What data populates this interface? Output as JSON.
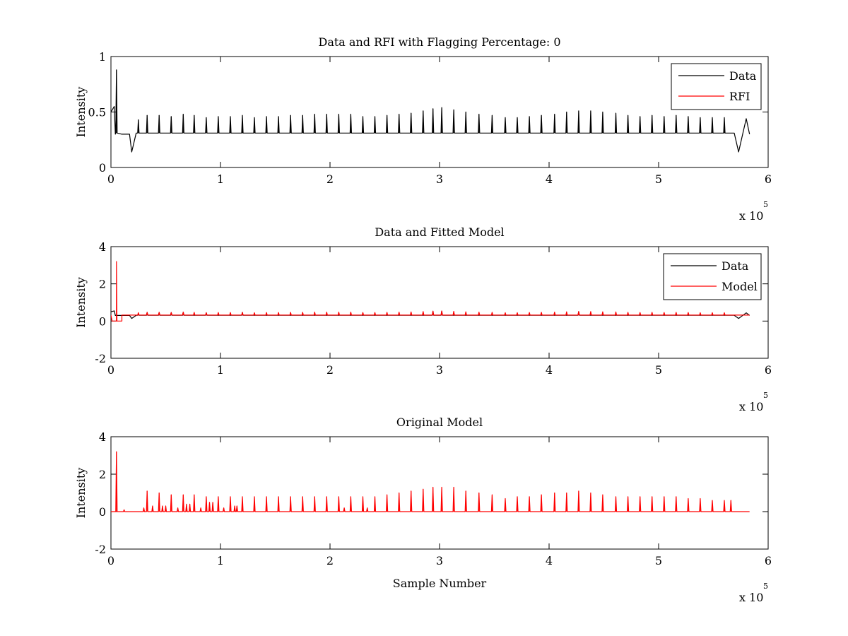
{
  "figure": {
    "background": "#ffffff",
    "colors": {
      "data": "#000000",
      "rfi": "#ff0000",
      "model": "#ff0000"
    }
  },
  "chart_data": [
    {
      "type": "line",
      "title": "Data and RFI with Flagging Percentage: 0",
      "xlabel": "",
      "ylabel": "Intensity",
      "xlim": [
        0,
        600000
      ],
      "ylim": [
        0,
        1
      ],
      "xticks": [
        0,
        1,
        2,
        3,
        4,
        5,
        6
      ],
      "yticks": [
        0,
        0.5,
        1
      ],
      "x_multiplier": "x 10",
      "x_multiplier_exp": "5",
      "legend": {
        "position": "top-right",
        "entries": [
          "Data",
          "RFI"
        ]
      },
      "series": [
        {
          "name": "Data",
          "color": "#000000",
          "baseline": 0.31,
          "x_end": 583000,
          "points": [
            [
              0,
              0.5
            ],
            [
              3000,
              0.55
            ],
            [
              4000,
              0.3
            ],
            [
              10000,
              0.3
            ],
            [
              17000,
              0.3
            ],
            [
              19000,
              0.14
            ],
            [
              23000,
              0.31
            ],
            [
              569000,
              0.31
            ],
            [
              573000,
              0.14
            ],
            [
              577000,
              0.31
            ],
            [
              580000,
              0.44
            ],
            [
              583000,
              0.3
            ]
          ],
          "spikes": [
            [
              5000,
              0.88
            ],
            [
              25000,
              0.43
            ],
            [
              33000,
              0.47
            ],
            [
              44000,
              0.47
            ],
            [
              55000,
              0.46
            ],
            [
              66000,
              0.48
            ],
            [
              76000,
              0.47
            ],
            [
              87000,
              0.45
            ],
            [
              98000,
              0.46
            ],
            [
              109000,
              0.46
            ],
            [
              120000,
              0.47
            ],
            [
              131000,
              0.45
            ],
            [
              142000,
              0.46
            ],
            [
              153000,
              0.46
            ],
            [
              164000,
              0.47
            ],
            [
              175000,
              0.47
            ],
            [
              186000,
              0.48
            ],
            [
              197000,
              0.48
            ],
            [
              208000,
              0.48
            ],
            [
              219000,
              0.48
            ],
            [
              230000,
              0.46
            ],
            [
              241000,
              0.46
            ],
            [
              252000,
              0.47
            ],
            [
              263000,
              0.48
            ],
            [
              274000,
              0.49
            ],
            [
              285000,
              0.51
            ],
            [
              294000,
              0.53
            ],
            [
              302000,
              0.54
            ],
            [
              313000,
              0.52
            ],
            [
              324000,
              0.5
            ],
            [
              336000,
              0.48
            ],
            [
              348000,
              0.47
            ],
            [
              360000,
              0.45
            ],
            [
              371000,
              0.45
            ],
            [
              382000,
              0.46
            ],
            [
              393000,
              0.47
            ],
            [
              405000,
              0.48
            ],
            [
              416000,
              0.5
            ],
            [
              427000,
              0.51
            ],
            [
              438000,
              0.51
            ],
            [
              449000,
              0.5
            ],
            [
              461000,
              0.49
            ],
            [
              472000,
              0.47
            ],
            [
              483000,
              0.46
            ],
            [
              494000,
              0.47
            ],
            [
              505000,
              0.46
            ],
            [
              516000,
              0.47
            ],
            [
              527000,
              0.46
            ],
            [
              538000,
              0.45
            ],
            [
              549000,
              0.45
            ],
            [
              560000,
              0.45
            ]
          ]
        },
        {
          "name": "RFI",
          "color": "#ff0000",
          "points": []
        }
      ]
    },
    {
      "type": "line",
      "title": "Data and Fitted Model",
      "xlabel": "",
      "ylabel": "Intensity",
      "xlim": [
        0,
        600000
      ],
      "ylim": [
        -2,
        4
      ],
      "xticks": [
        0,
        1,
        2,
        3,
        4,
        5,
        6
      ],
      "yticks": [
        -2,
        0,
        2,
        4
      ],
      "x_multiplier": "x 10",
      "x_multiplier_exp": "5",
      "legend": {
        "position": "top-right",
        "entries": [
          "Data",
          "Model"
        ]
      },
      "series": [
        {
          "name": "Data",
          "color": "#000000",
          "baseline": 0.31,
          "x_end": 583000,
          "points": [
            [
              0,
              0.5
            ],
            [
              3000,
              0.55
            ],
            [
              4000,
              0.3
            ],
            [
              17000,
              0.3
            ],
            [
              19000,
              0.14
            ],
            [
              23000,
              0.31
            ],
            [
              569000,
              0.31
            ],
            [
              573000,
              0.14
            ],
            [
              577000,
              0.31
            ],
            [
              580000,
              0.44
            ],
            [
              583000,
              0.3
            ]
          ],
          "spikes": [
            [
              25000,
              0.43
            ],
            [
              33000,
              0.47
            ],
            [
              44000,
              0.47
            ],
            [
              55000,
              0.46
            ],
            [
              66000,
              0.48
            ],
            [
              87000,
              0.45
            ],
            [
              120000,
              0.47
            ],
            [
              294000,
              0.53
            ],
            [
              302000,
              0.54
            ],
            [
              427000,
              0.51
            ]
          ]
        },
        {
          "name": "Model",
          "color": "#ff0000",
          "baseline": 0.32,
          "x_end": 583000,
          "points": [
            [
              0,
              0.32
            ],
            [
              1000,
              0.0
            ],
            [
              5000,
              0.0
            ],
            [
              5000,
              3.2
            ],
            [
              5500,
              0.0
            ],
            [
              10000,
              0.0
            ],
            [
              10000,
              0.32
            ]
          ],
          "spikes": [
            [
              25000,
              0.45
            ],
            [
              33000,
              0.47
            ],
            [
              44000,
              0.47
            ],
            [
              55000,
              0.46
            ],
            [
              66000,
              0.48
            ],
            [
              76000,
              0.47
            ],
            [
              87000,
              0.45
            ],
            [
              98000,
              0.46
            ],
            [
              109000,
              0.46
            ],
            [
              120000,
              0.47
            ],
            [
              131000,
              0.45
            ],
            [
              142000,
              0.46
            ],
            [
              153000,
              0.46
            ],
            [
              164000,
              0.47
            ],
            [
              175000,
              0.47
            ],
            [
              186000,
              0.48
            ],
            [
              197000,
              0.48
            ],
            [
              208000,
              0.48
            ],
            [
              219000,
              0.48
            ],
            [
              230000,
              0.46
            ],
            [
              241000,
              0.46
            ],
            [
              252000,
              0.47
            ],
            [
              263000,
              0.48
            ],
            [
              274000,
              0.49
            ],
            [
              285000,
              0.51
            ],
            [
              294000,
              0.53
            ],
            [
              302000,
              0.54
            ],
            [
              313000,
              0.52
            ],
            [
              324000,
              0.5
            ],
            [
              336000,
              0.48
            ],
            [
              348000,
              0.47
            ],
            [
              360000,
              0.45
            ],
            [
              371000,
              0.45
            ],
            [
              382000,
              0.46
            ],
            [
              393000,
              0.47
            ],
            [
              405000,
              0.48
            ],
            [
              416000,
              0.5
            ],
            [
              427000,
              0.51
            ],
            [
              438000,
              0.51
            ],
            [
              449000,
              0.5
            ],
            [
              461000,
              0.49
            ],
            [
              472000,
              0.47
            ],
            [
              483000,
              0.46
            ],
            [
              494000,
              0.47
            ],
            [
              505000,
              0.46
            ],
            [
              516000,
              0.47
            ],
            [
              527000,
              0.46
            ],
            [
              538000,
              0.45
            ],
            [
              549000,
              0.45
            ],
            [
              560000,
              0.45
            ]
          ]
        }
      ]
    },
    {
      "type": "line",
      "title": "Original Model",
      "xlabel": "Sample Number",
      "ylabel": "Intensity",
      "xlim": [
        0,
        600000
      ],
      "ylim": [
        -2,
        4
      ],
      "xticks": [
        0,
        1,
        2,
        3,
        4,
        5,
        6
      ],
      "yticks": [
        -2,
        0,
        2,
        4
      ],
      "x_multiplier": "x 10",
      "x_multiplier_exp": "5",
      "series": [
        {
          "name": "",
          "color": "#ff0000",
          "baseline": 0.0,
          "x_end": 583000,
          "points": [],
          "spikes": [
            [
              5000,
              3.2
            ],
            [
              12000,
              0.1
            ],
            [
              30000,
              0.2
            ],
            [
              33000,
              1.1
            ],
            [
              38000,
              0.3
            ],
            [
              44000,
              1.0
            ],
            [
              47000,
              0.3
            ],
            [
              50000,
              0.3
            ],
            [
              55000,
              0.9
            ],
            [
              61000,
              0.2
            ],
            [
              66000,
              0.9
            ],
            [
              69000,
              0.4
            ],
            [
              72000,
              0.4
            ],
            [
              76000,
              0.9
            ],
            [
              82000,
              0.2
            ],
            [
              87000,
              0.8
            ],
            [
              90000,
              0.5
            ],
            [
              93000,
              0.5
            ],
            [
              98000,
              0.8
            ],
            [
              103000,
              0.2
            ],
            [
              109000,
              0.8
            ],
            [
              113000,
              0.3
            ],
            [
              115000,
              0.3
            ],
            [
              120000,
              0.8
            ],
            [
              131000,
              0.8
            ],
            [
              142000,
              0.8
            ],
            [
              153000,
              0.8
            ],
            [
              164000,
              0.8
            ],
            [
              175000,
              0.8
            ],
            [
              186000,
              0.8
            ],
            [
              197000,
              0.8
            ],
            [
              208000,
              0.8
            ],
            [
              213000,
              0.2
            ],
            [
              219000,
              0.8
            ],
            [
              230000,
              0.8
            ],
            [
              234000,
              0.2
            ],
            [
              241000,
              0.8
            ],
            [
              252000,
              0.9
            ],
            [
              263000,
              1.0
            ],
            [
              274000,
              1.1
            ],
            [
              285000,
              1.2
            ],
            [
              294000,
              1.3
            ],
            [
              302000,
              1.3
            ],
            [
              313000,
              1.3
            ],
            [
              324000,
              1.1
            ],
            [
              336000,
              1.0
            ],
            [
              348000,
              0.9
            ],
            [
              360000,
              0.7
            ],
            [
              371000,
              0.8
            ],
            [
              382000,
              0.8
            ],
            [
              393000,
              0.9
            ],
            [
              405000,
              1.0
            ],
            [
              416000,
              1.0
            ],
            [
              427000,
              1.1
            ],
            [
              438000,
              1.0
            ],
            [
              449000,
              0.9
            ],
            [
              461000,
              0.8
            ],
            [
              472000,
              0.8
            ],
            [
              483000,
              0.8
            ],
            [
              494000,
              0.8
            ],
            [
              505000,
              0.8
            ],
            [
              516000,
              0.8
            ],
            [
              527000,
              0.7
            ],
            [
              538000,
              0.7
            ],
            [
              549000,
              0.6
            ],
            [
              560000,
              0.6
            ],
            [
              566000,
              0.6
            ]
          ]
        }
      ]
    }
  ]
}
